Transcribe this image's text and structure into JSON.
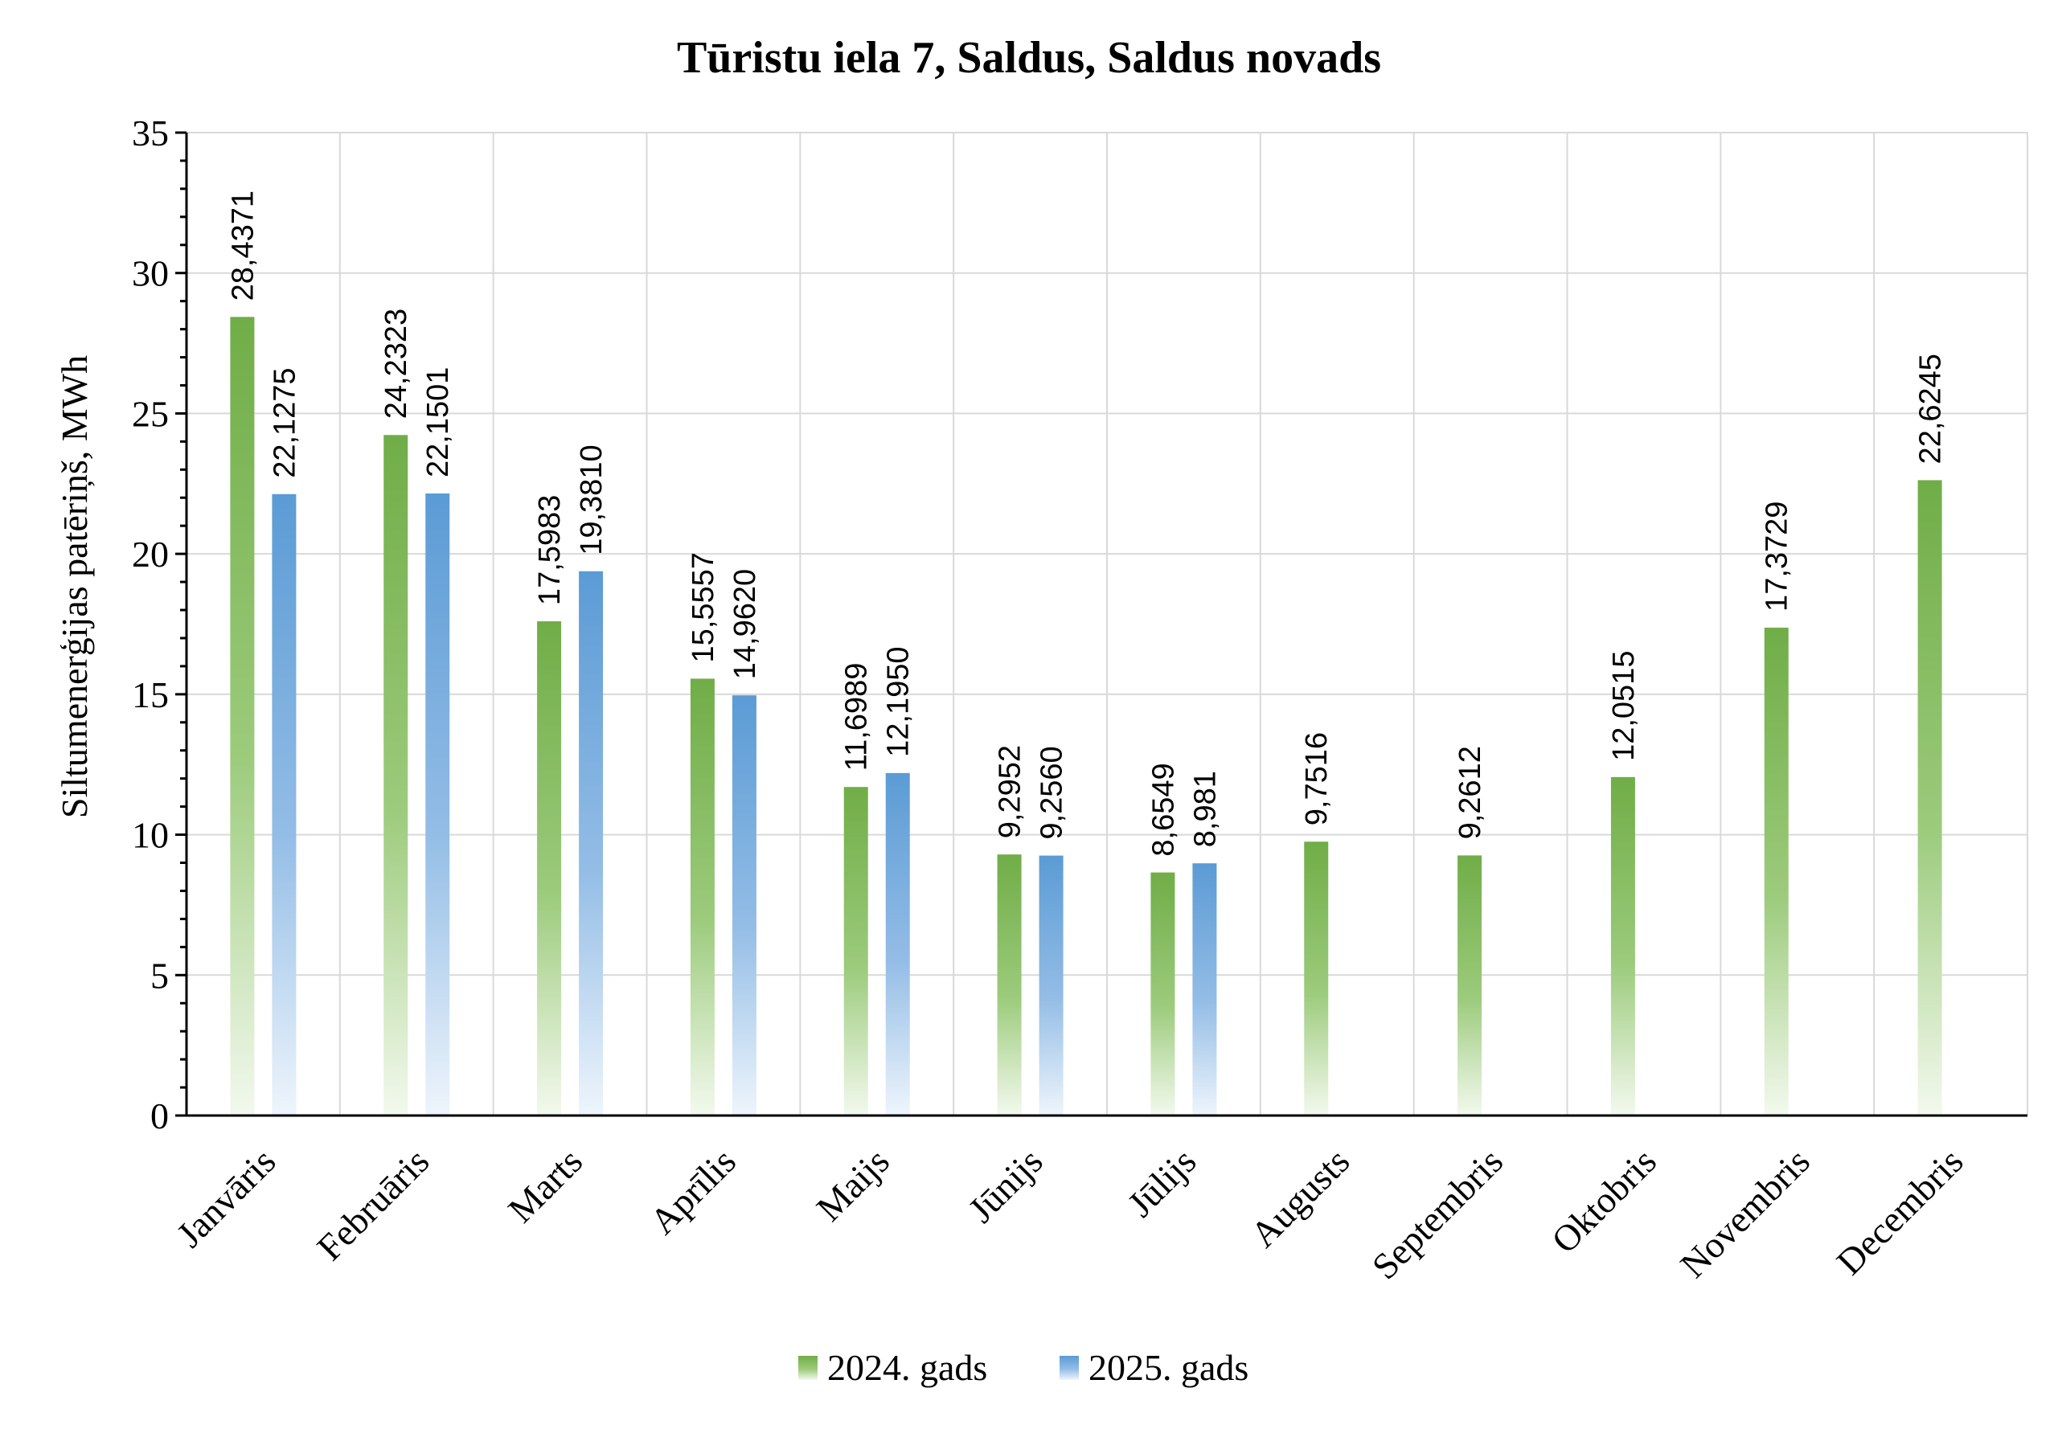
{
  "chart_data": {
    "type": "bar",
    "title": "Tūristu iela 7, Saldus, Saldus novads",
    "ylabel": "Siltumenerģijas patēriņš, MWh",
    "xlabel": "",
    "ylim": [
      0,
      35
    ],
    "yticks": [
      0,
      5,
      10,
      15,
      20,
      25,
      30,
      35
    ],
    "grid": true,
    "legend_position": "bottom",
    "categories": [
      "Janvāris",
      "Februāris",
      "Marts",
      "Aprīlis",
      "Maijs",
      "Jūnijs",
      "Jūlijs",
      "Augusts",
      "Septembris",
      "Oktobris",
      "Novembris",
      "Decembris"
    ],
    "series": [
      {
        "name": "2024. gads",
        "color": "#70ad47",
        "values": [
          28.4371,
          24.2323,
          17.5983,
          15.5557,
          11.6989,
          9.2952,
          8.6549,
          9.7516,
          9.2612,
          12.0515,
          17.3729,
          22.6245
        ],
        "labels": [
          "28,4371",
          "24,2323",
          "17,5983",
          "15,5557",
          "11,6989",
          "9,2952",
          "8,6549",
          "9,7516",
          "9,2612",
          "12,0515",
          "17,3729",
          "22,6245"
        ]
      },
      {
        "name": "2025. gads",
        "color": "#5b9bd5",
        "values": [
          22.1275,
          22.1501,
          19.381,
          14.962,
          12.195,
          9.256,
          8.981,
          null,
          null,
          null,
          null,
          null
        ],
        "labels": [
          "22,1275",
          "22,1501",
          "19,3810",
          "14,9620",
          "12,1950",
          "9,2560",
          "8,981",
          "",
          "",
          "",
          "",
          ""
        ]
      }
    ]
  }
}
